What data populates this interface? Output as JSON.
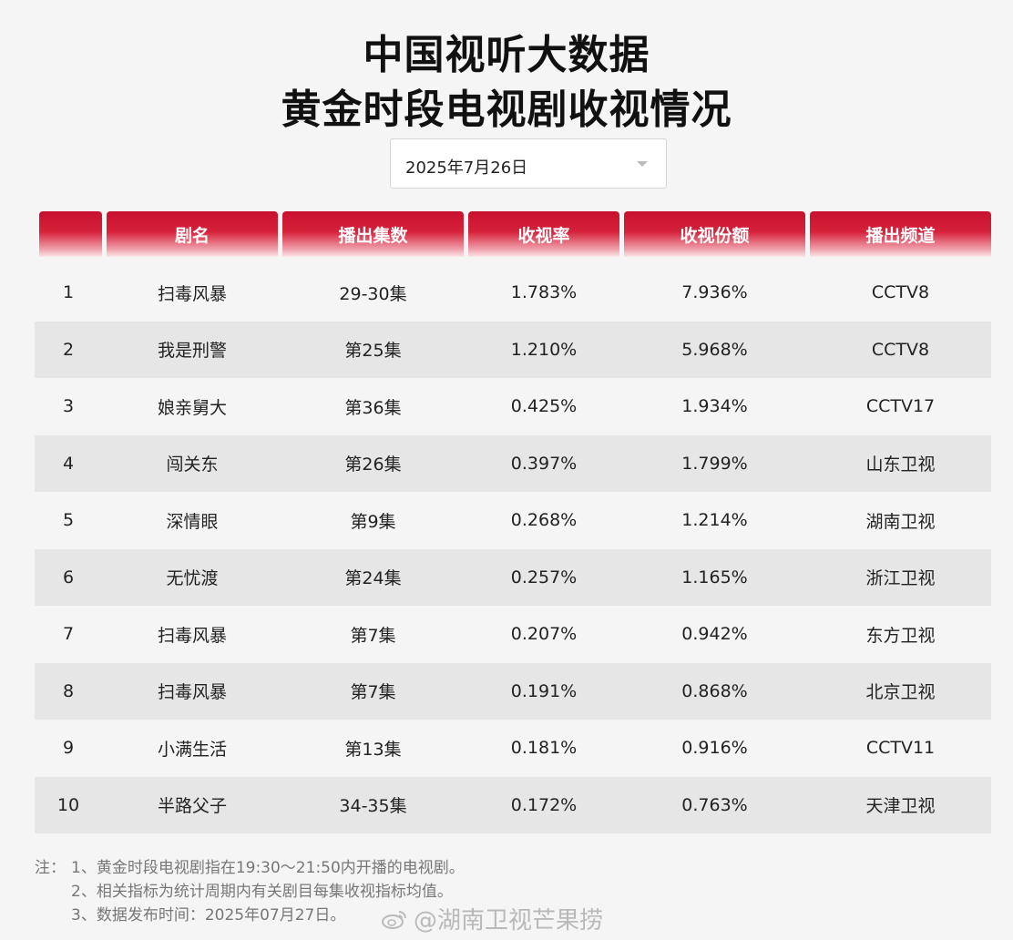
{
  "title": {
    "line1": "中国视听大数据",
    "line2": "黄金时段电视剧收视情况"
  },
  "date_select": {
    "value": "2025年7月26日"
  },
  "table": {
    "headers": [
      "",
      "剧名",
      "播出集数",
      "收视率",
      "收视份额",
      "播出频道"
    ],
    "rows": [
      [
        "1",
        "扫毒风暴",
        "29-30集",
        "1.783%",
        "7.936%",
        "CCTV8"
      ],
      [
        "2",
        "我是刑警",
        "第25集",
        "1.210%",
        "5.968%",
        "CCTV8"
      ],
      [
        "3",
        "娘亲舅大",
        "第36集",
        "0.425%",
        "1.934%",
        "CCTV17"
      ],
      [
        "4",
        "闯关东",
        "第26集",
        "0.397%",
        "1.799%",
        "山东卫视"
      ],
      [
        "5",
        "深情眼",
        "第9集",
        "0.268%",
        "1.214%",
        "湖南卫视"
      ],
      [
        "6",
        "无忧渡",
        "第24集",
        "0.257%",
        "1.165%",
        "浙江卫视"
      ],
      [
        "7",
        "扫毒风暴",
        "第7集",
        "0.207%",
        "0.942%",
        "东方卫视"
      ],
      [
        "8",
        "扫毒风暴",
        "第7集",
        "0.191%",
        "0.868%",
        "北京卫视"
      ],
      [
        "9",
        "小满生活",
        "第13集",
        "0.181%",
        "0.916%",
        "CCTV11"
      ],
      [
        "10",
        "半路父子",
        "34-35集",
        "0.172%",
        "0.763%",
        "天津卫视"
      ]
    ]
  },
  "notes": {
    "prefix": "注：",
    "lines": [
      "1、黄金时段电视剧指在19:30～21:50内开播的电视剧。",
      "2、相关指标为统计周期内有关剧目每集收视指标均值。",
      "3、数据发布时间：2025年07月27日。"
    ]
  },
  "watermark": {
    "text": "@湖南卫视芒果捞",
    "icon": "weibo-icon"
  },
  "colors": {
    "header_red": "#c8102e",
    "alt_row": "#e6e6e6",
    "background": "#f5f5f5"
  }
}
